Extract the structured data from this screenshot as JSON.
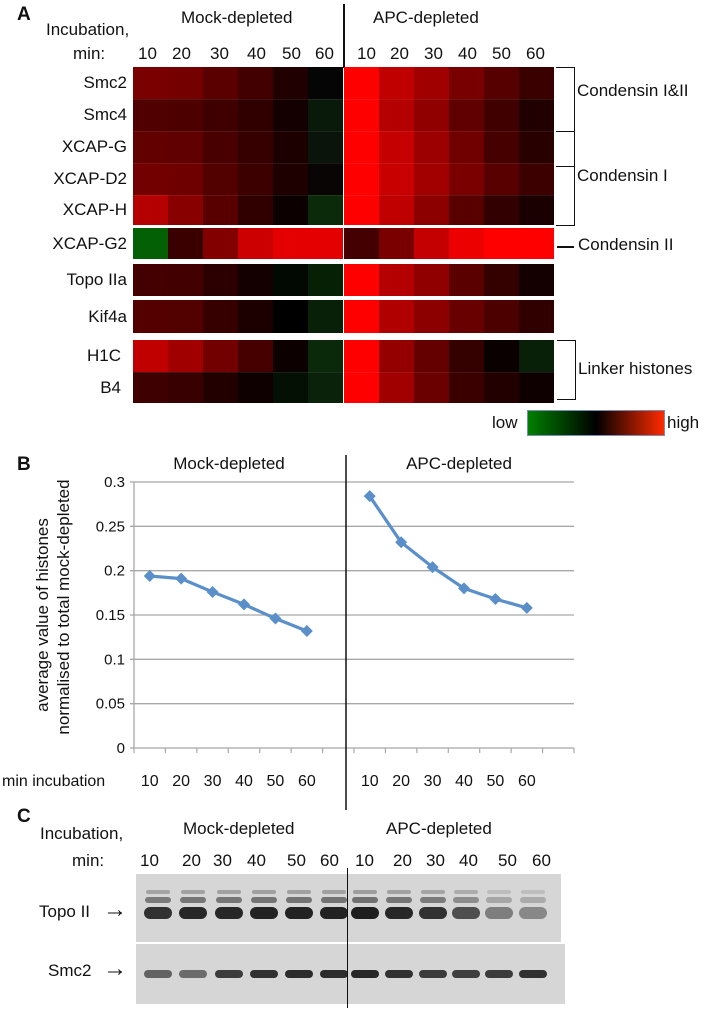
{
  "panelA": {
    "letter": "A",
    "incubation_label_line1": "Incubation,",
    "incubation_label_line2": "min:",
    "group_mock": "Mock-depleted",
    "group_apc": "APC-depleted",
    "timepoints": [
      "10",
      "20",
      "30",
      "40",
      "50",
      "60"
    ],
    "rows": [
      {
        "label": "Smc2",
        "mock": [
          "#7a0000",
          "#750000",
          "#5a0000",
          "#420000",
          "#200000",
          "#050505"
        ],
        "apc": [
          "#ff0000",
          "#c00000",
          "#a00000",
          "#780000",
          "#560000",
          "#3a0000"
        ]
      },
      {
        "label": "Smc4",
        "mock": [
          "#500000",
          "#4c0000",
          "#3e0000",
          "#300000",
          "#140000",
          "#0a1a0a"
        ],
        "apc": [
          "#ff0000",
          "#b40000",
          "#900000",
          "#600000",
          "#400000",
          "#200000"
        ]
      },
      {
        "label": "XCAP-G",
        "mock": [
          "#620000",
          "#600000",
          "#480000",
          "#360000",
          "#1c0000",
          "#0a140a"
        ],
        "apc": [
          "#ff0000",
          "#c40000",
          "#9c0000",
          "#700000",
          "#460000",
          "#280000"
        ]
      },
      {
        "label": "XCAP-D2",
        "mock": [
          "#720000",
          "#6e0000",
          "#520000",
          "#3c0000",
          "#1e0000",
          "#0a0505"
        ],
        "apc": [
          "#ff0000",
          "#c80000",
          "#a20000",
          "#7a0000",
          "#580000",
          "#3c0000"
        ]
      },
      {
        "label": "XCAP-H",
        "mock": [
          "#b40000",
          "#880000",
          "#580000",
          "#300000",
          "#0c0000",
          "#0a2a0a"
        ],
        "apc": [
          "#ff0000",
          "#c00000",
          "#8c0000",
          "#580000",
          "#320000",
          "#1a0000"
        ]
      },
      {
        "label": "XCAP-G2",
        "mock": [
          "#046004",
          "#3a0000",
          "#820000",
          "#cc0000",
          "#e40000",
          "#e40000"
        ],
        "apc": [
          "#440000",
          "#7a0000",
          "#c40000",
          "#ec0000",
          "#ff0000",
          "#ff0000"
        ]
      },
      {
        "label": "Topo IIa",
        "mock": [
          "#440000",
          "#420000",
          "#2c0000",
          "#140000",
          "#020802",
          "#062006"
        ],
        "apc": [
          "#ff0000",
          "#b40000",
          "#900000",
          "#5a0000",
          "#340000",
          "#140000"
        ]
      },
      {
        "label": "Kif4a",
        "mock": [
          "#540000",
          "#520000",
          "#360000",
          "#1c0000",
          "#000000",
          "#082008"
        ],
        "apc": [
          "#ff0000",
          "#b00000",
          "#8c0000",
          "#680000",
          "#4c0000",
          "#300000"
        ]
      },
      {
        "label": "H1C",
        "mock": [
          "#c00000",
          "#a00000",
          "#720000",
          "#460000",
          "#0c0000",
          "#0a280a"
        ],
        "apc": [
          "#ff0000",
          "#940000",
          "#640000",
          "#340000",
          "#0a0000",
          "#082008"
        ]
      },
      {
        "label": "B4",
        "mock": [
          "#3e0000",
          "#380000",
          "#220000",
          "#0e0000",
          "#041004",
          "#0a220a"
        ],
        "apc": [
          "#ff0000",
          "#a00000",
          "#6a0000",
          "#3a0000",
          "#220000",
          "#0e0000"
        ]
      }
    ],
    "groups": [
      {
        "label": "Condensin I&II",
        "type": "bracket"
      },
      {
        "label": "Condensin I",
        "type": "bracket"
      },
      {
        "label": "Condensin II",
        "type": "line"
      },
      {
        "label": "Linker histones",
        "type": "bracket"
      }
    ],
    "legend": {
      "low": "low",
      "high": "high",
      "colors": [
        "#008000",
        "#000000",
        "#ff2a00"
      ]
    }
  },
  "panelB": {
    "letter": "B"
  },
  "panelC": {
    "letter": "C",
    "incubation_label_line1": "Incubation,",
    "incubation_label_line2": "min:",
    "group_mock": "Mock-depleted",
    "group_apc": "APC-depleted",
    "timepoints_mock": [
      "10",
      "20",
      "30",
      "40",
      "50",
      "60"
    ],
    "timepoints_apc": [
      "10",
      "20",
      "30",
      "40",
      "50",
      "60"
    ],
    "blots": [
      {
        "label": "Topo II",
        "arrow": "→",
        "intensity_mock": [
          0.85,
          0.9,
          0.9,
          0.92,
          0.93,
          0.93
        ],
        "intensity_apc": [
          0.95,
          0.9,
          0.85,
          0.7,
          0.45,
          0.4
        ]
      },
      {
        "label": "Smc2",
        "arrow": "→",
        "intensity_mock": [
          0.6,
          0.55,
          0.8,
          0.85,
          0.88,
          0.88
        ],
        "intensity_apc": [
          0.9,
          0.85,
          0.8,
          0.78,
          0.8,
          0.85
        ]
      }
    ]
  },
  "chart_data": {
    "type": "line",
    "title": "",
    "panels": [
      "Mock-depleted",
      "APC-depleted"
    ],
    "x_label": "min incubation",
    "categories": [
      "10",
      "20",
      "30",
      "40",
      "50",
      "60"
    ],
    "ylabel_line1": "average value of histones",
    "ylabel_line2": "normalised to total mock-depleted",
    "ylim": [
      0,
      0.3
    ],
    "yticks": [
      "0",
      "0.05",
      "0.1",
      "0.15",
      "0.2",
      "0.25",
      "0.3"
    ],
    "ytick_values": [
      0,
      0.05,
      0.1,
      0.15,
      0.2,
      0.25,
      0.3
    ],
    "grid": true,
    "marker": "diamond",
    "series_color": "#5b8fc9",
    "series": [
      {
        "name": "Mock-depleted",
        "values": [
          0.194,
          0.191,
          0.176,
          0.162,
          0.146,
          0.132
        ]
      },
      {
        "name": "APC-depleted",
        "values": [
          0.284,
          0.232,
          0.204,
          0.18,
          0.168,
          0.158
        ]
      }
    ]
  }
}
